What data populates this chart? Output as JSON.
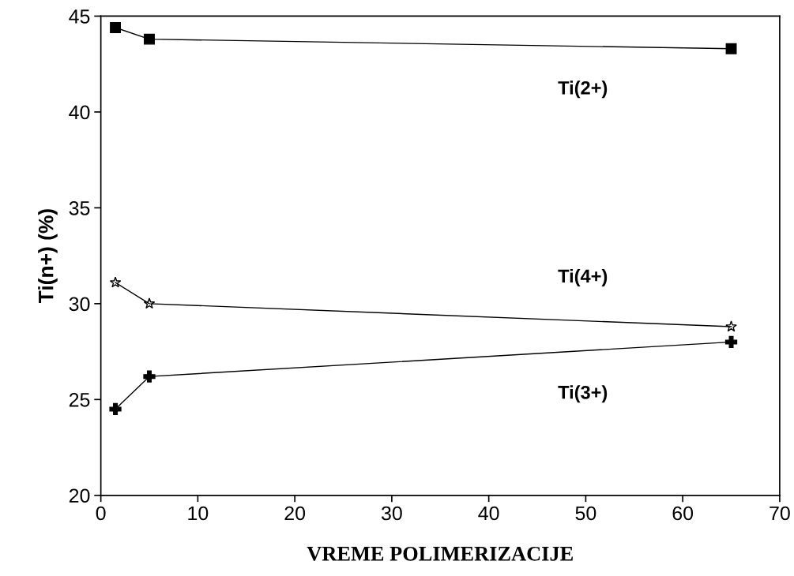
{
  "chart_data": {
    "type": "line",
    "xlabel": "VREME POLIMERIZACIJE",
    "ylabel": "Ti(n+) (%)",
    "x": [
      1.5,
      5,
      65
    ],
    "series": [
      {
        "name": "Ti(2+)",
        "color": "#000000",
        "marker": "square",
        "values": [
          44.4,
          43.8,
          43.3
        ]
      },
      {
        "name": "Ti(4+)",
        "color": "#000000",
        "marker": "star",
        "values": [
          31.1,
          30.0,
          28.8
        ]
      },
      {
        "name": "Ti(3+)",
        "color": "#000000",
        "marker": "cross",
        "values": [
          24.5,
          26.2,
          28.0
        ]
      }
    ],
    "xlim": [
      0,
      70
    ],
    "xticks": [
      0,
      10,
      20,
      30,
      40,
      50,
      60,
      70
    ],
    "ylim": [
      20,
      45
    ],
    "yticks": [
      20,
      25,
      30,
      35,
      40,
      45
    ],
    "grid": false,
    "legend": false,
    "line_style": "solid"
  }
}
